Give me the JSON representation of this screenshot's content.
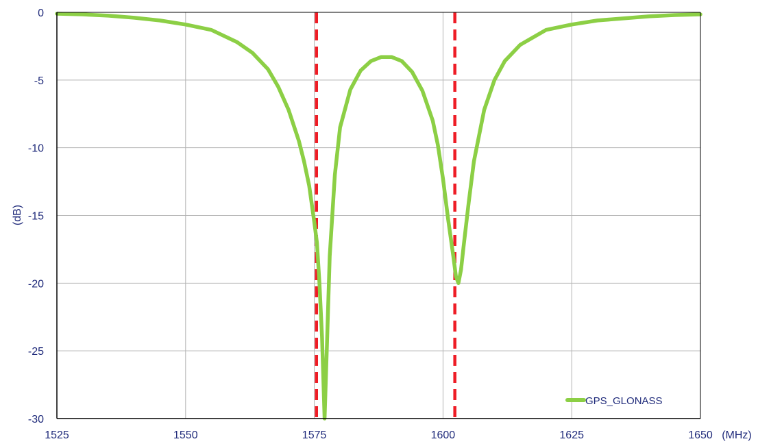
{
  "chart_data": {
    "type": "line",
    "title": "",
    "xlabel": "(MHz)",
    "ylabel": "(dB)",
    "xlim": [
      1525,
      1650
    ],
    "ylim": [
      -30,
      0
    ],
    "x_ticks": [
      1525,
      1550,
      1575,
      1600,
      1625,
      1650
    ],
    "y_ticks": [
      0,
      -5,
      -10,
      -15,
      -20,
      -25,
      -30
    ],
    "grid": true,
    "legend_position": "bottom-right",
    "reference_lines": [
      1575.42,
      1602.3
    ],
    "colors": {
      "series": "#8ccf45",
      "reference_lines": "#ee1c25",
      "grid": "#b3b3b3",
      "axis_text": "#1f2a7a",
      "axes": "#000000"
    },
    "series": [
      {
        "name": "GPS_GLONASS",
        "x": [
          1525,
          1530,
          1535,
          1540,
          1545,
          1550,
          1555,
          1560,
          1563,
          1566,
          1568,
          1570,
          1572,
          1573,
          1574,
          1575,
          1575.5,
          1576,
          1576.5,
          1577,
          1577.5,
          1578,
          1579,
          1580,
          1582,
          1584,
          1586,
          1588,
          1590,
          1592,
          1594,
          1596,
          1598,
          1599,
          1600,
          1601,
          1602,
          1602.5,
          1603,
          1603.5,
          1604,
          1605,
          1606,
          1608,
          1610,
          1612,
          1615,
          1620,
          1625,
          1630,
          1635,
          1640,
          1645,
          1650
        ],
        "y": [
          -0.1,
          -0.15,
          -0.25,
          -0.4,
          -0.6,
          -0.9,
          -1.3,
          -2.2,
          -3.0,
          -4.2,
          -5.5,
          -7.2,
          -9.5,
          -11.0,
          -12.8,
          -15.5,
          -17.0,
          -20.0,
          -24.0,
          -30.0,
          -24.0,
          -18.0,
          -12.0,
          -8.5,
          -5.7,
          -4.3,
          -3.6,
          -3.3,
          -3.3,
          -3.6,
          -4.4,
          -5.8,
          -8.0,
          -9.8,
          -12.3,
          -15.3,
          -18.0,
          -19.5,
          -20.0,
          -19.0,
          -17.3,
          -14.0,
          -11.0,
          -7.2,
          -5.0,
          -3.6,
          -2.4,
          -1.3,
          -0.9,
          -0.6,
          -0.45,
          -0.3,
          -0.2,
          -0.15
        ]
      }
    ]
  }
}
